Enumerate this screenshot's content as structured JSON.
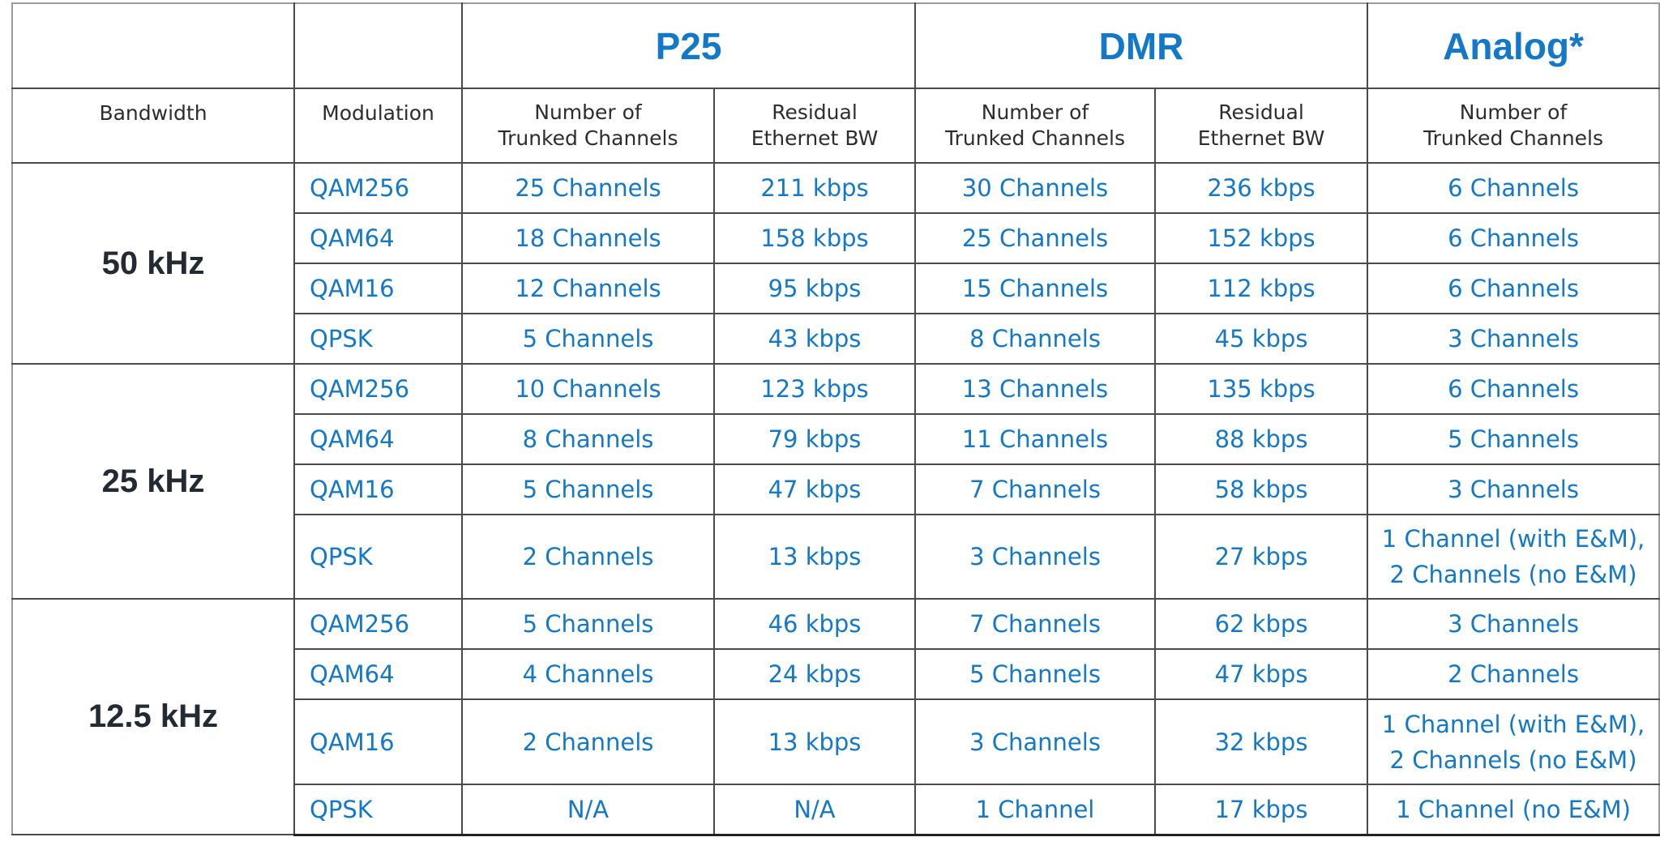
{
  "protocols": {
    "p25": "P25",
    "dmr": "DMR",
    "analog": "Analog*"
  },
  "headers": {
    "bandwidth": "Bandwidth",
    "modulation": "Modulation",
    "p25_channels": "Number of\nTrunked Channels",
    "p25_residual": "Residual\nEthernet BW",
    "dmr_channels": "Number of\nTrunked Channels",
    "dmr_residual": "Residual\nEthernet BW",
    "analog_channels": "Number of\nTrunked Channels"
  },
  "groups": [
    {
      "bandwidth": "50 kHz",
      "rows": [
        {
          "modulation": "QAM256",
          "p25_channels": "25 Channels",
          "p25_residual": "211 kbps",
          "dmr_channels": "30 Channels",
          "dmr_residual": "236 kbps",
          "analog_channels": "6 Channels"
        },
        {
          "modulation": "QAM64",
          "p25_channels": "18 Channels",
          "p25_residual": "158 kbps",
          "dmr_channels": "25 Channels",
          "dmr_residual": "152 kbps",
          "analog_channels": "6 Channels"
        },
        {
          "modulation": "QAM16",
          "p25_channels": "12 Channels",
          "p25_residual": "95 kbps",
          "dmr_channels": "15 Channels",
          "dmr_residual": "112 kbps",
          "analog_channels": "6 Channels"
        },
        {
          "modulation": "QPSK",
          "p25_channels": "5 Channels",
          "p25_residual": "43 kbps",
          "dmr_channels": "8 Channels",
          "dmr_residual": "45 kbps",
          "analog_channels": "3 Channels"
        }
      ]
    },
    {
      "bandwidth": "25 kHz",
      "rows": [
        {
          "modulation": "QAM256",
          "p25_channels": "10 Channels",
          "p25_residual": "123 kbps",
          "dmr_channels": "13 Channels",
          "dmr_residual": "135 kbps",
          "analog_channels": "6 Channels"
        },
        {
          "modulation": "QAM64",
          "p25_channels": "8 Channels",
          "p25_residual": "79 kbps",
          "dmr_channels": "11 Channels",
          "dmr_residual": "88 kbps",
          "analog_channels": "5 Channels"
        },
        {
          "modulation": "QAM16",
          "p25_channels": "5 Channels",
          "p25_residual": "47 kbps",
          "dmr_channels": "7 Channels",
          "dmr_residual": "58 kbps",
          "analog_channels": "3 Channels"
        },
        {
          "modulation": "QPSK",
          "p25_channels": "2 Channels",
          "p25_residual": "13 kbps",
          "dmr_channels": "3 Channels",
          "dmr_residual": "27 kbps",
          "analog_channels": "1 Channel (with E&M),\n2 Channels (no E&M)"
        }
      ]
    },
    {
      "bandwidth": "12.5 kHz",
      "rows": [
        {
          "modulation": "QAM256",
          "p25_channels": "5 Channels",
          "p25_residual": "46 kbps",
          "dmr_channels": "7 Channels",
          "dmr_residual": "62 kbps",
          "analog_channels": "3 Channels"
        },
        {
          "modulation": "QAM64",
          "p25_channels": "4 Channels",
          "p25_residual": "24 kbps",
          "dmr_channels": "5 Channels",
          "dmr_residual": "47 kbps",
          "analog_channels": "2 Channels"
        },
        {
          "modulation": "QAM16",
          "p25_channels": "2 Channels",
          "p25_residual": "13 kbps",
          "dmr_channels": "3 Channels",
          "dmr_residual": "32 kbps",
          "analog_channels": "1 Channel (with E&M),\n2 Channels (no E&M)"
        },
        {
          "modulation": "QPSK",
          "p25_channels": "N/A",
          "p25_residual": "N/A",
          "dmr_channels": "1 Channel",
          "dmr_residual": "17 kbps",
          "analog_channels": "1 Channel (no E&M)"
        }
      ]
    }
  ],
  "colors": {
    "accent_blue": "#1478c8",
    "bandwidth_text": "#222a33",
    "header_text": "#2d2d2d",
    "grid": "#4a4a4a"
  }
}
